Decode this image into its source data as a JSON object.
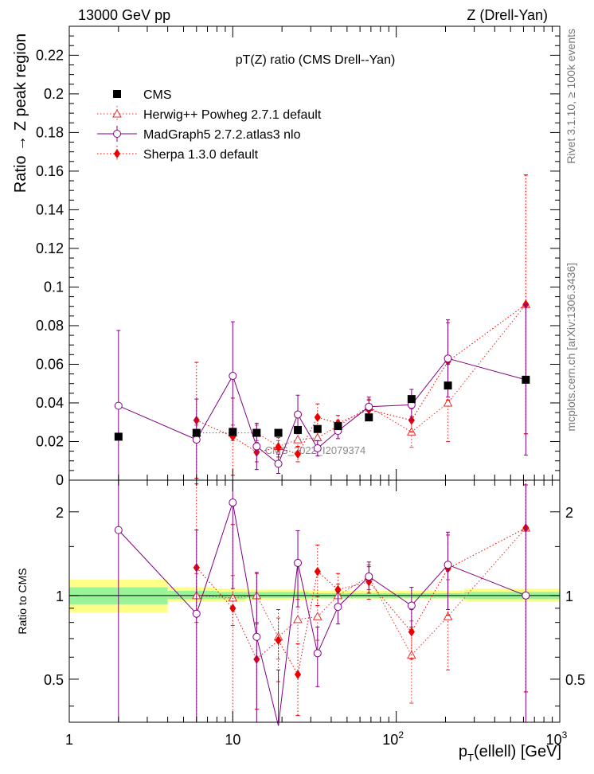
{
  "header": {
    "left": "13000 GeV pp",
    "right": "Z (Drell-Yan)"
  },
  "side": {
    "rivet": "Rivet 3.1.10, ≥ 100k events",
    "mcplots": "mcplots.cern.ch [arXiv:1306.3436]"
  },
  "watermark": "CMS_2022_I2079374",
  "chart_data": [
    {
      "type": "scatter",
      "title": "pT(Z) ratio (CMS Drell--Yan)",
      "xlabel": "p_T(ellell) [GeV]",
      "ylabel": "Ratio → Z peak region",
      "xscale": "log",
      "xlim": [
        1,
        1000
      ],
      "ylim": [
        0,
        0.235
      ],
      "yticks": [
        "0",
        "0.02",
        "0.04",
        "0.06",
        "0.08",
        "0.1",
        "0.12",
        "0.14",
        "0.16",
        "0.18",
        "0.2",
        "0.22"
      ],
      "ytick_values": [
        0,
        0.02,
        0.04,
        0.06,
        0.08,
        0.1,
        0.12,
        0.14,
        0.16,
        0.18,
        0.2,
        0.22
      ],
      "legend_position": "top-left",
      "series": [
        {
          "name": "CMS",
          "color": "#000000",
          "marker": "square",
          "line": "none",
          "x": [
            2,
            6,
            10,
            14,
            19,
            25,
            33,
            44,
            68,
            124,
            207,
            620
          ],
          "y": [
            0.0225,
            0.0245,
            0.025,
            0.0245,
            0.0245,
            0.026,
            0.0265,
            0.028,
            0.0325,
            0.042,
            0.049,
            0.052
          ],
          "err": [
            0,
            0,
            0,
            0,
            0,
            0,
            0,
            0,
            0,
            0,
            0,
            0
          ]
        },
        {
          "name": "Herwig++ Powheg 2.7.1 default",
          "color": "#e03030",
          "marker": "triangle-open",
          "line": "dotted",
          "x": [
            6,
            10,
            14,
            19,
            25,
            33,
            44,
            68,
            124,
            207,
            620
          ],
          "y": [
            0.0245,
            0.0245,
            0.0245,
            0.0175,
            0.021,
            0.022,
            0.028,
            0.038,
            0.025,
            0.04,
            0.091
          ],
          "err": [
            0.004,
            0.004,
            0.004,
            0.003,
            0.004,
            0.004,
            0.003,
            0.004,
            0.008,
            0.02,
            0.067
          ]
        },
        {
          "name": "MadGraph5 2.7.2.atlas3 nlo",
          "color": "#800080",
          "marker": "circle-open",
          "line": "solid",
          "x": [
            2,
            6,
            10,
            14,
            19,
            25,
            33,
            44,
            68,
            124,
            207,
            620
          ],
          "y": [
            0.0385,
            0.021,
            0.054,
            0.0175,
            0.0085,
            0.034,
            0.0165,
            0.0255,
            0.038,
            0.039,
            0.063,
            0.052
          ],
          "err": [
            0.039,
            0.021,
            0.028,
            0.012,
            0.005,
            0.01,
            0.004,
            0.004,
            0.005,
            0.008,
            0.02,
            0.039
          ]
        },
        {
          "name": "Sherpa 1.3.0 default",
          "color": "#ee0000",
          "marker": "diamond",
          "line": "dotted",
          "x": [
            6,
            10,
            14,
            19,
            25,
            33,
            44,
            68,
            124,
            207,
            620
          ],
          "y": [
            0.031,
            0.0225,
            0.0145,
            0.017,
            0.0135,
            0.0325,
            0.0295,
            0.0365,
            0.031,
            0.0615,
            0.091
          ],
          "err": [
            0.03,
            0.02,
            0.005,
            0.005,
            0.004,
            0.007,
            0.004,
            0.005,
            0.006,
            0.02,
            0.067
          ]
        }
      ]
    },
    {
      "type": "scatter",
      "title": "",
      "xlabel": "p_T(ellell) [GeV]",
      "ylabel": "Ratio to CMS",
      "xscale": "log",
      "yscale": "log",
      "xlim": [
        1,
        1000
      ],
      "ylim": [
        0.35,
        2.6
      ],
      "xticks": [
        "1",
        "10",
        "10",
        "10"
      ],
      "xtick_exponents": [
        "",
        "",
        "2",
        "3"
      ],
      "xtick_values": [
        1,
        10,
        100,
        1000
      ],
      "yticks": [
        "0.5",
        "1",
        "2"
      ],
      "ytick_values": [
        0.5,
        1,
        2
      ],
      "reference_band": {
        "x_edges": [
          1,
          4,
          8,
          12,
          16,
          22,
          29,
          38,
          55,
          90,
          160,
          260,
          1000
        ],
        "yellow_lo": [
          0.87,
          0.95,
          0.95,
          0.96,
          0.96,
          0.96,
          0.97,
          0.97,
          0.97,
          0.97,
          0.97,
          0.95
        ],
        "yellow_hi": [
          1.14,
          1.07,
          1.06,
          1.05,
          1.05,
          1.05,
          1.04,
          1.04,
          1.04,
          1.04,
          1.04,
          1.06
        ],
        "green_lo": [
          0.93,
          0.97,
          0.97,
          0.98,
          0.98,
          0.98,
          0.98,
          0.98,
          0.98,
          0.98,
          0.98,
          0.97
        ],
        "green_hi": [
          1.07,
          1.04,
          1.03,
          1.03,
          1.03,
          1.03,
          1.02,
          1.02,
          1.02,
          1.02,
          1.02,
          1.03
        ]
      },
      "series": [
        {
          "name": "Herwig++ Powheg 2.7.1 default",
          "color": "#e03030",
          "marker": "triangle-open",
          "line": "dotted",
          "x": [
            6,
            10,
            14,
            19,
            25,
            33,
            44,
            68,
            124,
            207,
            620
          ],
          "y": [
            1.0,
            0.98,
            1.0,
            0.71,
            0.82,
            0.84,
            1.0,
            1.17,
            0.61,
            0.84,
            1.75
          ],
          "err_lo": [
            0.2,
            0.2,
            0.2,
            0.12,
            0.15,
            0.15,
            0.1,
            0.12,
            0.2,
            0.3,
            1.3
          ],
          "err_hi": [
            0.2,
            0.2,
            0.2,
            0.12,
            0.15,
            0.15,
            0.1,
            0.12,
            0.2,
            0.3,
            1.3
          ]
        },
        {
          "name": "MadGraph5 2.7.2.atlas3 nlo",
          "color": "#800080",
          "marker": "circle-open",
          "line": "solid",
          "x": [
            2,
            6,
            10,
            14,
            19,
            25,
            33,
            44,
            68,
            124,
            207,
            620
          ],
          "y": [
            1.72,
            0.86,
            2.16,
            0.71,
            0.34,
            1.31,
            0.62,
            0.91,
            1.17,
            0.92,
            1.29,
            1.0
          ],
          "err_lo": [
            1.72,
            0.86,
            1.1,
            0.5,
            0.2,
            0.4,
            0.15,
            0.12,
            0.15,
            0.15,
            0.4,
            1.0
          ],
          "err_hi": [
            1.72,
            0.86,
            1.1,
            0.5,
            0.2,
            0.4,
            0.15,
            0.12,
            0.15,
            0.15,
            0.4,
            1.5
          ]
        },
        {
          "name": "Sherpa 1.3.0 default",
          "color": "#ee0000",
          "marker": "diamond",
          "line": "dotted",
          "x": [
            6,
            10,
            14,
            19,
            25,
            33,
            44,
            68,
            124,
            207,
            620
          ],
          "y": [
            1.26,
            0.9,
            0.59,
            0.69,
            0.52,
            1.22,
            1.05,
            1.12,
            0.74,
            1.25,
            1.75
          ],
          "err_lo": [
            1.26,
            0.9,
            0.2,
            0.2,
            0.15,
            0.3,
            0.15,
            0.15,
            0.15,
            0.4,
            1.3
          ],
          "err_hi": [
            1.26,
            0.9,
            0.2,
            0.2,
            0.15,
            0.3,
            0.15,
            0.15,
            0.15,
            0.4,
            1.3
          ]
        }
      ]
    }
  ]
}
